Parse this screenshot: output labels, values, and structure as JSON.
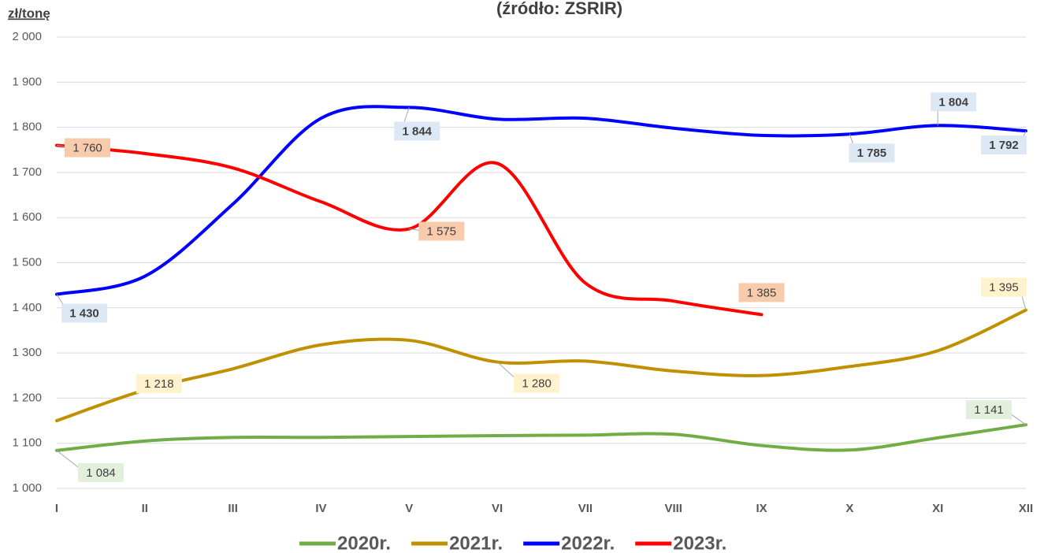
{
  "chart_data": {
    "type": "line",
    "title": "(źródło: ZSRIR)",
    "y_axis_label": "zł/tonę",
    "categories": [
      "I",
      "II",
      "III",
      "IV",
      "V",
      "VI",
      "VII",
      "VIII",
      "IX",
      "X",
      "XI",
      "XII"
    ],
    "ylim": [
      1000,
      2000
    ],
    "yticks": [
      {
        "value": 1000,
        "label": "1 000"
      },
      {
        "value": 1100,
        "label": "1 100"
      },
      {
        "value": 1200,
        "label": "1 200"
      },
      {
        "value": 1300,
        "label": "1 300"
      },
      {
        "value": 1400,
        "label": "1 400"
      },
      {
        "value": 1500,
        "label": "1 500"
      },
      {
        "value": 1600,
        "label": "1 600"
      },
      {
        "value": 1700,
        "label": "1 700"
      },
      {
        "value": 1800,
        "label": "1 800"
      },
      {
        "value": 1900,
        "label": "1 900"
      },
      {
        "value": 2000,
        "label": "2 000"
      }
    ],
    "grid": true,
    "legend": "bottom",
    "series": [
      {
        "name": "2020r.",
        "color": "#70ad47",
        "values": [
          1084,
          1105,
          1113,
          1113,
          1115,
          1117,
          1118,
          1120,
          1095,
          1085,
          1112,
          1141
        ],
        "value_labels": [
          "1 084",
          null,
          null,
          null,
          null,
          null,
          null,
          null,
          null,
          null,
          null,
          "1 141"
        ]
      },
      {
        "name": "2021r.",
        "color": "#bf9000",
        "values": [
          1150,
          1218,
          1265,
          1318,
          1328,
          1280,
          1282,
          1260,
          1250,
          1270,
          1305,
          1395
        ],
        "value_labels": [
          null,
          "1 218",
          null,
          null,
          null,
          "1 280",
          null,
          null,
          null,
          null,
          null,
          "1 395"
        ]
      },
      {
        "name": "2022r.",
        "color": "#0000ff",
        "values": [
          1430,
          1470,
          1630,
          1820,
          1844,
          1818,
          1820,
          1798,
          1782,
          1785,
          1804,
          1792
        ],
        "value_labels": [
          "1 430",
          null,
          null,
          null,
          "1 844",
          null,
          null,
          null,
          null,
          "1 785",
          "1 804",
          "1 792"
        ]
      },
      {
        "name": "2023r.",
        "color": "#ff0000",
        "values": [
          1760,
          1742,
          1710,
          1635,
          1575,
          1720,
          1455,
          1415,
          1385,
          null,
          null,
          null
        ],
        "value_labels": [
          "1 760",
          null,
          null,
          null,
          "1 575",
          null,
          null,
          null,
          "1 385",
          null,
          null,
          null
        ]
      }
    ]
  }
}
